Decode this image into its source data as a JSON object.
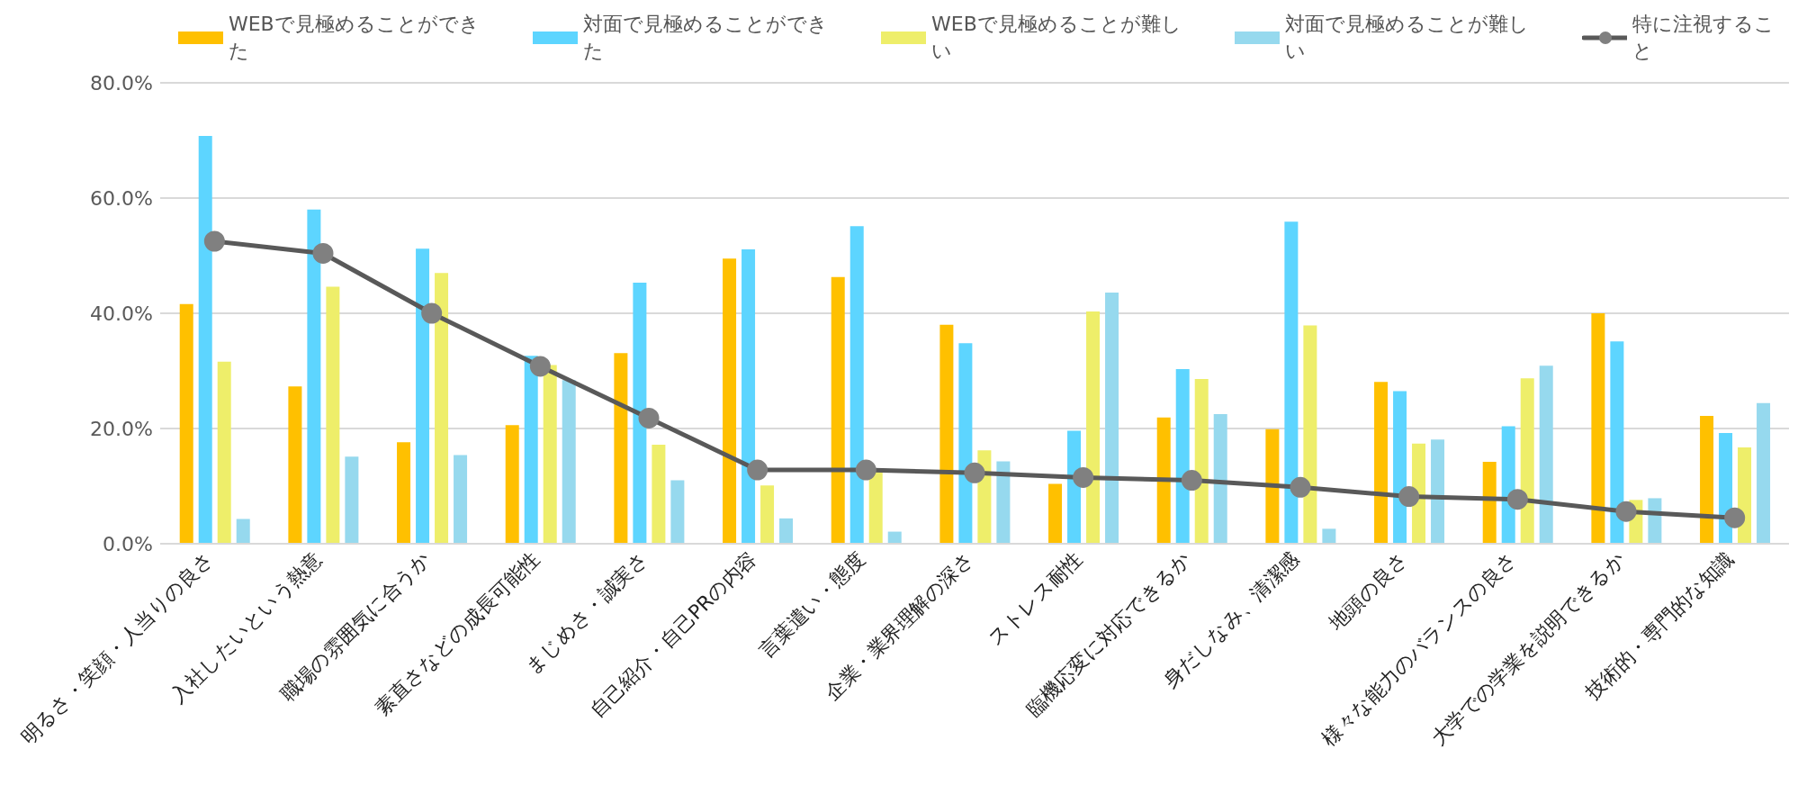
{
  "chart_data": {
    "type": "bar",
    "categories": [
      "明るさ・笑顔・人当りの良さ",
      "入社したいという熱意",
      "職場の雰囲気に合うか",
      "素直さなどの成長可能性",
      "まじめさ・誠実さ",
      "自己紹介・自己PRの内容",
      "言葉遣い・態度",
      "企業・業界理解の深さ",
      "ストレス耐性",
      "臨機応変に対応できるか",
      "身だしなみ、清潔感",
      "地頭の良さ",
      "様々な能力のバランスの良さ",
      "大学での学業を説明できるか",
      "技術的・専門的な知識"
    ],
    "series": [
      {
        "name": "WEBで見極めることができた",
        "color": "#ffc000",
        "values": [
          41.6,
          27.3,
          17.6,
          20.6,
          33.1,
          49.5,
          46.3,
          38.0,
          10.4,
          21.9,
          19.9,
          28.1,
          14.2,
          40.0,
          22.2
        ]
      },
      {
        "name": "対面で見極めることができた",
        "color": "#5dd5ff",
        "values": [
          70.8,
          58.0,
          51.2,
          32.6,
          45.3,
          51.1,
          55.1,
          34.8,
          19.6,
          30.3,
          55.9,
          26.5,
          20.4,
          35.1,
          19.2
        ]
      },
      {
        "name": "WEBで見極めることが難しい",
        "color": "#eeee6a",
        "values": [
          31.6,
          44.6,
          47.0,
          31.0,
          17.2,
          10.1,
          12.9,
          16.2,
          40.3,
          28.6,
          37.9,
          17.4,
          28.7,
          7.6,
          16.7
        ]
      },
      {
        "name": "対面で見極めることが難しい",
        "color": "#96d9ee",
        "values": [
          4.3,
          15.1,
          15.4,
          28.4,
          11.0,
          4.4,
          2.1,
          14.3,
          43.6,
          22.5,
          2.6,
          18.1,
          30.9,
          7.9,
          24.4
        ]
      },
      {
        "name": "特に注視すること",
        "type": "line",
        "color": "#595959",
        "marker": "circle",
        "values": [
          52.5,
          50.4,
          40.0,
          30.8,
          21.8,
          12.8,
          12.8,
          12.3,
          11.5,
          11.0,
          9.8,
          8.2,
          7.7,
          5.6,
          4.5
        ]
      }
    ],
    "ylim": [
      0,
      80
    ],
    "yticks": [
      {
        "value": 0,
        "label": "0.0%"
      },
      {
        "value": 20,
        "label": "20.0%"
      },
      {
        "value": 40,
        "label": "40.0%"
      },
      {
        "value": 60,
        "label": "60.0%"
      },
      {
        "value": 80,
        "label": "80.0%"
      }
    ],
    "grid": "y",
    "legend": "top"
  }
}
